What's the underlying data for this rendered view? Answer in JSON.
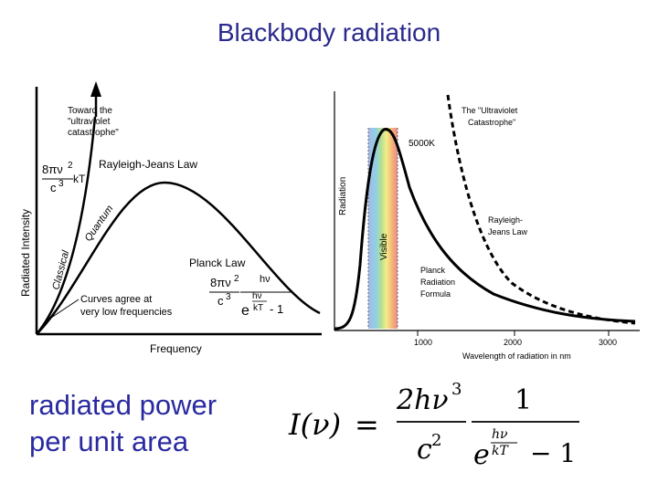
{
  "title": "Blackbody radiation",
  "left_plot": {
    "ylabel": "Radiated Intensity",
    "xlabel": "Frequency",
    "arrow_note": [
      "Toward the",
      "\"ultraviolet",
      "catastrophe\""
    ],
    "rj_law": "Rayleigh-Jeans Law",
    "planck_law": "Planck Law",
    "classical": "Classical",
    "quantum": "Quantum",
    "agree_note": [
      "Curves agree at",
      "very low frequencies"
    ],
    "rj_formula": {
      "coef": "8πν",
      "exp": "2",
      "den": "c",
      "den_exp": "3",
      "kt": "kT"
    },
    "planck_formula": {
      "coef": "8πν",
      "exp": "2",
      "den": "c",
      "den_exp": "3",
      "hv_top": "hν",
      "hv": "hν",
      "kt": "kT",
      "e": "e",
      "minus_one": "- 1"
    }
  },
  "right_plot": {
    "ylabel": "Radiation",
    "xlabel": "Wavelength of radiation in nm",
    "uv_note": [
      "The \"Ultraviolet",
      "Catastrophe\""
    ],
    "temp": "5000K",
    "visible": "Visible",
    "rj_label": [
      "Rayleigh-",
      "Jeans Law"
    ],
    "planck_label": [
      "Planck",
      "Radiation",
      "Formula"
    ],
    "ticks": [
      "1000",
      "2000",
      "3000"
    ]
  },
  "caption": [
    "radiated power",
    "per unit area"
  ],
  "formula": {
    "lhs": "I(ν)",
    "eq": "=",
    "num": "2hν",
    "num_exp": "3",
    "den": "c",
    "den_exp": "2",
    "one": "1",
    "e": "e",
    "hv": "hν",
    "kt": "kT",
    "minus_one": "− 1"
  }
}
